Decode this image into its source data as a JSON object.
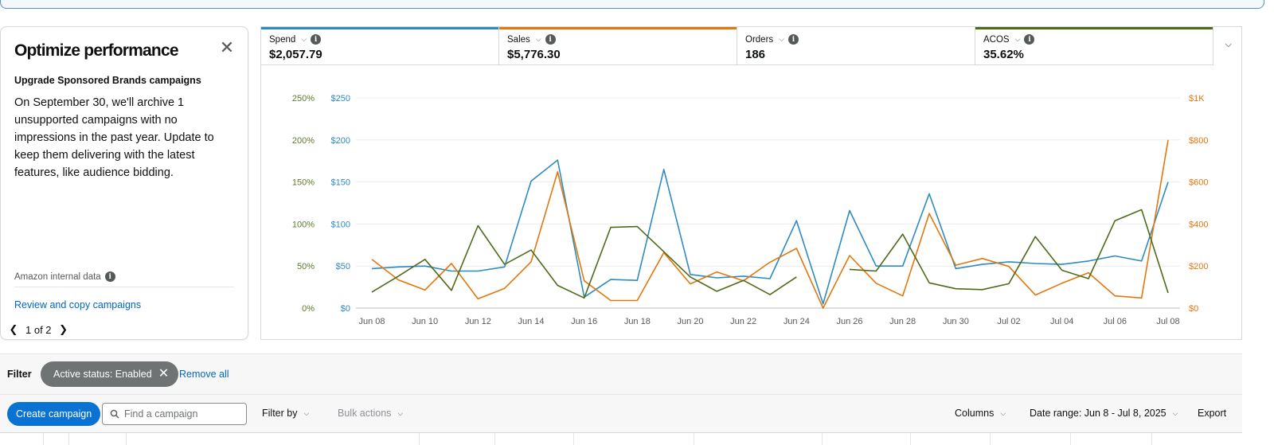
{
  "optimize": {
    "title": "Optimize performance",
    "subtitle": "Upgrade Sponsored Brands campaigns",
    "body": "On September 30, we'll archive 1 unsupported campaigns with no impressions in the past year. Update to keep them delivering with the latest features, like audience bidding.",
    "source_label": "Amazon internal data",
    "link_label": "Review and copy campaigns",
    "pager": "1 of 2",
    "close_icon": "close-icon",
    "info_icon": "info-icon"
  },
  "metrics": [
    {
      "name": "Spend",
      "value": "$2,057.79",
      "color": "#2e8bc0"
    },
    {
      "name": "Sales",
      "value": "$5,776.30",
      "color": "#e0780f"
    },
    {
      "name": "Orders",
      "value": "186",
      "color": ""
    },
    {
      "name": "ACOS",
      "value": "35.62%",
      "color": "#4f6b1a"
    }
  ],
  "chart_data": {
    "type": "line",
    "x": [
      "Jun 08",
      "Jun 09",
      "Jun 10",
      "Jun 11",
      "Jun 12",
      "Jun 13",
      "Jun 14",
      "Jun 15",
      "Jun 16",
      "Jun 17",
      "Jun 18",
      "Jun 19",
      "Jun 20",
      "Jun 21",
      "Jun 22",
      "Jun 23",
      "Jun 24",
      "Jun 25",
      "Jun 26",
      "Jun 27",
      "Jun 28",
      "Jun 29",
      "Jun 30",
      "Jul 01",
      "Jul 02",
      "Jul 03",
      "Jul 04",
      "Jul 05",
      "Jul 06",
      "Jul 07",
      "Jul 08"
    ],
    "x_tick_labels": [
      "Jun 08",
      "Jun 10",
      "Jun 12",
      "Jun 14",
      "Jun 16",
      "Jun 18",
      "Jun 20",
      "Jun 22",
      "Jun 24",
      "Jun 26",
      "Jun 28",
      "Jun 30",
      "Jul 02",
      "Jul 04",
      "Jul 06",
      "Jul 08"
    ],
    "left_axis_acos": {
      "ticks": [
        "0%",
        "50%",
        "100%",
        "150%",
        "200%",
        "250%"
      ],
      "range": [
        0,
        250
      ]
    },
    "left_axis_spend": {
      "ticks": [
        "$0",
        "$50",
        "$100",
        "$150",
        "$200",
        "$250"
      ],
      "range": [
        0,
        250
      ]
    },
    "right_axis_sales": {
      "ticks": [
        "$0",
        "$200",
        "$400",
        "$600",
        "$800",
        "$1K"
      ],
      "range": [
        0,
        1000
      ]
    },
    "series": [
      {
        "name": "Spend",
        "axis": "spend",
        "color": "#2e8bc0",
        "values": [
          47,
          49,
          50,
          44,
          44,
          49,
          151,
          176,
          13,
          34,
          33,
          165,
          40,
          36,
          38,
          35,
          104,
          5,
          116,
          50,
          50,
          136,
          47,
          52,
          55,
          53,
          52,
          56,
          62,
          56,
          150
        ]
      },
      {
        "name": "Sales",
        "axis": "sales",
        "color": "#e0780f",
        "values": [
          232,
          134,
          86,
          212,
          44,
          94,
          220,
          648,
          130,
          36,
          36,
          264,
          115,
          172,
          130,
          218,
          284,
          0,
          250,
          118,
          58,
          450,
          204,
          236,
          198,
          62,
          118,
          168,
          58,
          48,
          800
        ]
      },
      {
        "name": "ACOS",
        "axis": "acos",
        "color": "#4f6b1a",
        "values": [
          19,
          38,
          58,
          21,
          98,
          52,
          69,
          27,
          12,
          96,
          97,
          67,
          37,
          20,
          33,
          16,
          37,
          null,
          46,
          44,
          88,
          30,
          23,
          22,
          29,
          85,
          45,
          35,
          104,
          117,
          18
        ]
      }
    ]
  },
  "filter": {
    "label": "Filter",
    "chip": "Active status: Enabled",
    "remove_all": "Remove all"
  },
  "toolbar": {
    "create": "Create campaign",
    "search_placeholder": "Find a campaign",
    "filter_by": "Filter by",
    "bulk_actions": "Bulk actions",
    "columns": "Columns",
    "date_range": "Date range: Jun 8 - Jul 8, 2025",
    "export": "Export"
  }
}
